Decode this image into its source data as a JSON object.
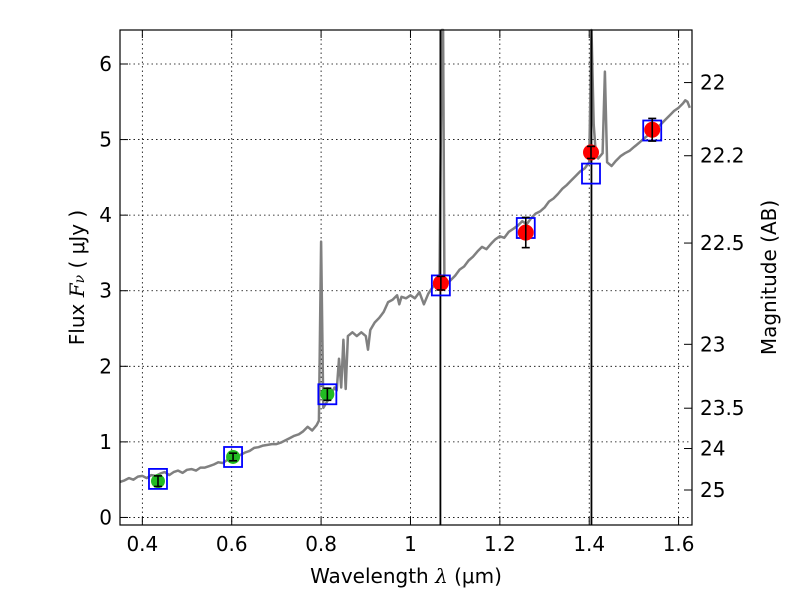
{
  "chart_data": {
    "type": "scatter",
    "xlabel": "Wavelength  λ (μm)",
    "xlabel_parts": {
      "prefix": "Wavelength  ",
      "symbol": "λ",
      "suffix": " (μm)"
    },
    "ylabel": "Flux  Fν  ( μJy )",
    "ylabel_parts": {
      "prefix": "Flux  ",
      "symbol": "F",
      "sub": "ν",
      "suffix": "  ( μJy )"
    },
    "y2label": "Magnitude (AB)",
    "xlim": [
      0.35,
      1.63
    ],
    "ylim": [
      -0.1,
      6.45
    ],
    "grid": true,
    "xticks": [
      {
        "value": 0.4,
        "label": "0.4"
      },
      {
        "value": 0.6,
        "label": "0.6"
      },
      {
        "value": 0.8,
        "label": "0.8"
      },
      {
        "value": 1.0,
        "label": "1"
      },
      {
        "value": 1.2,
        "label": "1.2"
      },
      {
        "value": 1.4,
        "label": "1.4"
      },
      {
        "value": 1.6,
        "label": "1.6"
      }
    ],
    "yticks": [
      {
        "value": 0,
        "label": "0"
      },
      {
        "value": 1,
        "label": "1"
      },
      {
        "value": 2,
        "label": "2"
      },
      {
        "value": 3,
        "label": "3"
      },
      {
        "value": 4,
        "label": "4"
      },
      {
        "value": 5,
        "label": "5"
      },
      {
        "value": 6,
        "label": "6"
      }
    ],
    "y2ticks": [
      {
        "mag": 22,
        "label": "22"
      },
      {
        "mag": 22.2,
        "label": "22.2"
      },
      {
        "mag": 22.5,
        "label": "22.5"
      },
      {
        "mag": 23,
        "label": "23"
      },
      {
        "mag": 23.5,
        "label": "23.5"
      },
      {
        "mag": 24,
        "label": "24"
      },
      {
        "mag": 25,
        "label": "25"
      }
    ],
    "vertical_lines": [
      1.067,
      1.405
    ],
    "colors": {
      "spectrum": "#808080",
      "model": "#0000ff",
      "measured_low": "#22bb22",
      "measured_high": "#ff0000",
      "errorbar": "#000000"
    },
    "series": [
      {
        "name": "spectrum",
        "kind": "line",
        "points": [
          [
            0.35,
            0.47
          ],
          [
            0.36,
            0.49
          ],
          [
            0.37,
            0.52
          ],
          [
            0.38,
            0.5
          ],
          [
            0.39,
            0.54
          ],
          [
            0.4,
            0.55
          ],
          [
            0.41,
            0.52
          ],
          [
            0.42,
            0.56
          ],
          [
            0.43,
            0.55
          ],
          [
            0.44,
            0.58
          ],
          [
            0.45,
            0.6
          ],
          [
            0.46,
            0.56
          ],
          [
            0.47,
            0.6
          ],
          [
            0.48,
            0.62
          ],
          [
            0.49,
            0.59
          ],
          [
            0.5,
            0.63
          ],
          [
            0.51,
            0.64
          ],
          [
            0.52,
            0.62
          ],
          [
            0.53,
            0.66
          ],
          [
            0.54,
            0.66
          ],
          [
            0.55,
            0.68
          ],
          [
            0.56,
            0.7
          ],
          [
            0.57,
            0.73
          ],
          [
            0.58,
            0.72
          ],
          [
            0.59,
            0.76
          ],
          [
            0.6,
            0.79
          ],
          [
            0.61,
            0.8
          ],
          [
            0.62,
            0.83
          ],
          [
            0.63,
            0.86
          ],
          [
            0.64,
            0.88
          ],
          [
            0.65,
            0.92
          ],
          [
            0.66,
            0.93
          ],
          [
            0.67,
            0.95
          ],
          [
            0.68,
            0.96
          ],
          [
            0.69,
            0.97
          ],
          [
            0.7,
            0.97
          ],
          [
            0.71,
            0.99
          ],
          [
            0.72,
            1.02
          ],
          [
            0.73,
            1.05
          ],
          [
            0.74,
            1.08
          ],
          [
            0.75,
            1.1
          ],
          [
            0.76,
            1.14
          ],
          [
            0.77,
            1.2
          ],
          [
            0.78,
            1.15
          ],
          [
            0.79,
            1.22
          ],
          [
            0.795,
            1.28
          ],
          [
            0.8,
            3.65
          ],
          [
            0.805,
            1.45
          ],
          [
            0.81,
            1.5
          ],
          [
            0.82,
            1.6
          ],
          [
            0.83,
            1.72
          ],
          [
            0.835,
            1.68
          ],
          [
            0.84,
            2.1
          ],
          [
            0.845,
            1.72
          ],
          [
            0.85,
            2.35
          ],
          [
            0.855,
            1.7
          ],
          [
            0.86,
            2.4
          ],
          [
            0.87,
            2.45
          ],
          [
            0.88,
            2.4
          ],
          [
            0.89,
            2.45
          ],
          [
            0.9,
            2.4
          ],
          [
            0.905,
            2.22
          ],
          [
            0.91,
            2.48
          ],
          [
            0.92,
            2.58
          ],
          [
            0.93,
            2.64
          ],
          [
            0.94,
            2.72
          ],
          [
            0.95,
            2.85
          ],
          [
            0.96,
            2.88
          ],
          [
            0.97,
            2.94
          ],
          [
            0.975,
            2.82
          ],
          [
            0.98,
            2.92
          ],
          [
            0.99,
            2.9
          ],
          [
            1.0,
            2.94
          ],
          [
            1.01,
            2.9
          ],
          [
            1.02,
            2.98
          ],
          [
            1.03,
            2.82
          ],
          [
            1.04,
            2.96
          ],
          [
            1.05,
            3.05
          ],
          [
            1.06,
            3.12
          ],
          [
            1.065,
            3.1
          ],
          [
            1.07,
            6.45
          ],
          [
            1.073,
            6.45
          ],
          [
            1.076,
            3.1
          ],
          [
            1.08,
            3.08
          ],
          [
            1.09,
            3.14
          ],
          [
            1.1,
            3.2
          ],
          [
            1.11,
            3.28
          ],
          [
            1.12,
            3.32
          ],
          [
            1.13,
            3.4
          ],
          [
            1.14,
            3.45
          ],
          [
            1.15,
            3.52
          ],
          [
            1.16,
            3.58
          ],
          [
            1.17,
            3.55
          ],
          [
            1.18,
            3.62
          ],
          [
            1.19,
            3.68
          ],
          [
            1.2,
            3.72
          ],
          [
            1.21,
            3.7
          ],
          [
            1.22,
            3.78
          ],
          [
            1.23,
            3.82
          ],
          [
            1.24,
            3.86
          ],
          [
            1.25,
            3.92
          ],
          [
            1.26,
            3.88
          ],
          [
            1.27,
            3.96
          ],
          [
            1.28,
            4.02
          ],
          [
            1.29,
            4.05
          ],
          [
            1.3,
            4.1
          ],
          [
            1.31,
            4.18
          ],
          [
            1.32,
            4.22
          ],
          [
            1.33,
            4.28
          ],
          [
            1.34,
            4.35
          ],
          [
            1.35,
            4.4
          ],
          [
            1.36,
            4.46
          ],
          [
            1.37,
            4.52
          ],
          [
            1.38,
            4.58
          ],
          [
            1.39,
            4.62
          ],
          [
            1.4,
            4.7
          ],
          [
            1.405,
            6.45
          ],
          [
            1.41,
            5.2
          ],
          [
            1.415,
            4.8
          ],
          [
            1.42,
            4.75
          ],
          [
            1.43,
            4.82
          ],
          [
            1.435,
            5.9
          ],
          [
            1.44,
            4.7
          ],
          [
            1.45,
            4.65
          ],
          [
            1.46,
            4.72
          ],
          [
            1.47,
            4.78
          ],
          [
            1.48,
            4.82
          ],
          [
            1.49,
            4.85
          ],
          [
            1.5,
            4.9
          ],
          [
            1.51,
            4.95
          ],
          [
            1.52,
            5.0
          ],
          [
            1.53,
            5.05
          ],
          [
            1.54,
            5.1
          ],
          [
            1.55,
            5.15
          ],
          [
            1.56,
            5.2
          ],
          [
            1.57,
            5.26
          ],
          [
            1.58,
            5.32
          ],
          [
            1.59,
            5.38
          ],
          [
            1.6,
            5.42
          ],
          [
            1.61,
            5.48
          ],
          [
            1.615,
            5.52
          ],
          [
            1.62,
            5.5
          ],
          [
            1.625,
            5.42
          ]
        ]
      },
      {
        "name": "model",
        "kind": "square",
        "points": [
          {
            "x": 0.435,
            "y": 0.51
          },
          {
            "x": 0.603,
            "y": 0.8
          },
          {
            "x": 0.814,
            "y": 1.63
          },
          {
            "x": 1.068,
            "y": 3.07
          },
          {
            "x": 1.258,
            "y": 3.83
          },
          {
            "x": 1.404,
            "y": 4.55
          },
          {
            "x": 1.541,
            "y": 5.12
          }
        ]
      },
      {
        "name": "measured",
        "kind": "circle",
        "points": [
          {
            "x": 0.435,
            "y": 0.48,
            "err": 0.07,
            "color": "green"
          },
          {
            "x": 0.603,
            "y": 0.8,
            "err": 0.05,
            "color": "green"
          },
          {
            "x": 0.814,
            "y": 1.63,
            "err": 0.08,
            "color": "green"
          },
          {
            "x": 1.068,
            "y": 3.1,
            "err": 0.09,
            "color": "red"
          },
          {
            "x": 1.258,
            "y": 3.77,
            "err": 0.2,
            "color": "red"
          },
          {
            "x": 1.404,
            "y": 4.83,
            "err": 0.08,
            "color": "red"
          },
          {
            "x": 1.541,
            "y": 5.13,
            "err": 0.15,
            "color": "red"
          }
        ]
      }
    ]
  }
}
